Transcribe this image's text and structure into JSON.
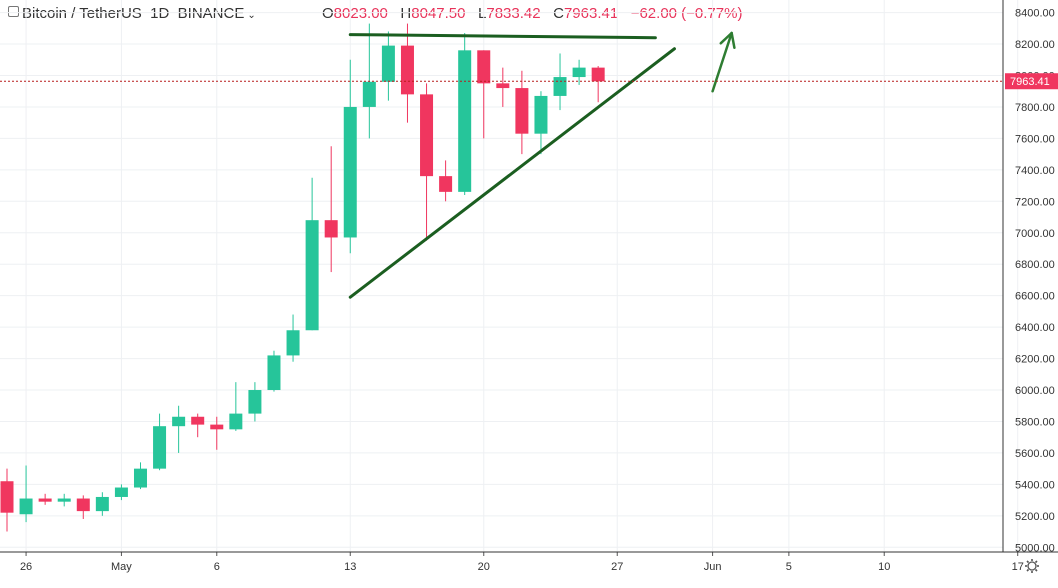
{
  "header": {
    "symbol": "Bitcoin / TetherUS",
    "interval": "1D",
    "exchange": "BINANCE",
    "open_label": "O",
    "open": "8023.00",
    "high_label": "H",
    "high": "8047.50",
    "low_label": "L",
    "low": "7833.42",
    "close_label": "C",
    "close": "7963.41",
    "change": "−62.00 (−0.77%)"
  },
  "price_badge": "7963.41",
  "colors": {
    "up": "#26c59a",
    "down": "#f0365f",
    "trendline": "#1b5e20",
    "arrow": "#2e7d32",
    "last_price_line": "#b71c1c"
  },
  "icons": {
    "settings": "gear-icon",
    "symbol": "symbol-icon",
    "dropdown": "chevron-down-icon"
  },
  "chart_data": {
    "type": "candlestick",
    "x_axis": {
      "ticks": [
        "26",
        "May",
        "6",
        "13",
        "20",
        "27",
        "Jun",
        "5",
        "10",
        "17"
      ]
    },
    "y_axis": {
      "ticks": [
        "5000.00",
        "5200.00",
        "5400.00",
        "5600.00",
        "5800.00",
        "6000.00",
        "6200.00",
        "6400.00",
        "6600.00",
        "6800.00",
        "7000.00",
        "7200.00",
        "7400.00",
        "7600.00",
        "7800.00",
        "8000.00",
        "8200.00",
        "8400.00"
      ],
      "range": [
        4970,
        8480
      ]
    },
    "candles": [
      {
        "date": "Apr 25",
        "o": 5420,
        "h": 5500,
        "l": 5100,
        "c": 5220
      },
      {
        "date": "Apr 26",
        "o": 5210,
        "h": 5520,
        "l": 5160,
        "c": 5310
      },
      {
        "date": "Apr 27",
        "o": 5310,
        "h": 5340,
        "l": 5270,
        "c": 5290
      },
      {
        "date": "Apr 28",
        "o": 5290,
        "h": 5340,
        "l": 5260,
        "c": 5310
      },
      {
        "date": "Apr 29",
        "o": 5310,
        "h": 5330,
        "l": 5180,
        "c": 5230
      },
      {
        "date": "Apr 30",
        "o": 5230,
        "h": 5350,
        "l": 5200,
        "c": 5320
      },
      {
        "date": "May 1",
        "o": 5320,
        "h": 5400,
        "l": 5300,
        "c": 5380
      },
      {
        "date": "May 2",
        "o": 5380,
        "h": 5540,
        "l": 5370,
        "c": 5500
      },
      {
        "date": "May 3",
        "o": 5500,
        "h": 5850,
        "l": 5490,
        "c": 5770
      },
      {
        "date": "May 4",
        "o": 5770,
        "h": 5900,
        "l": 5600,
        "c": 5830
      },
      {
        "date": "May 5",
        "o": 5830,
        "h": 5850,
        "l": 5700,
        "c": 5780
      },
      {
        "date": "May 6",
        "o": 5780,
        "h": 5830,
        "l": 5620,
        "c": 5750
      },
      {
        "date": "May 7",
        "o": 5750,
        "h": 6050,
        "l": 5740,
        "c": 5850
      },
      {
        "date": "May 8",
        "o": 5850,
        "h": 6050,
        "l": 5800,
        "c": 6000
      },
      {
        "date": "May 9",
        "o": 6000,
        "h": 6250,
        "l": 5990,
        "c": 6220
      },
      {
        "date": "May 10",
        "o": 6220,
        "h": 6480,
        "l": 6180,
        "c": 6380
      },
      {
        "date": "May 11",
        "o": 6380,
        "h": 7350,
        "l": 6380,
        "c": 7080
      },
      {
        "date": "May 12",
        "o": 7080,
        "h": 7550,
        "l": 6750,
        "c": 6970
      },
      {
        "date": "May 13",
        "o": 6970,
        "h": 8100,
        "l": 6870,
        "c": 7800
      },
      {
        "date": "May 14",
        "o": 7800,
        "h": 8330,
        "l": 7600,
        "c": 7960
      },
      {
        "date": "May 15",
        "o": 7960,
        "h": 8280,
        "l": 7840,
        "c": 8190
      },
      {
        "date": "May 16",
        "o": 8190,
        "h": 8330,
        "l": 7700,
        "c": 7880
      },
      {
        "date": "May 17",
        "o": 7880,
        "h": 7950,
        "l": 6950,
        "c": 7360
      },
      {
        "date": "May 18",
        "o": 7360,
        "h": 7460,
        "l": 7200,
        "c": 7260
      },
      {
        "date": "May 19",
        "o": 7260,
        "h": 8270,
        "l": 7240,
        "c": 8160
      },
      {
        "date": "May 20",
        "o": 8160,
        "h": 8160,
        "l": 7600,
        "c": 7950
      },
      {
        "date": "May 21",
        "o": 7950,
        "h": 8050,
        "l": 7800,
        "c": 7920
      },
      {
        "date": "May 22",
        "o": 7920,
        "h": 8030,
        "l": 7500,
        "c": 7630
      },
      {
        "date": "May 23",
        "o": 7630,
        "h": 7900,
        "l": 7500,
        "c": 7870
      },
      {
        "date": "May 24",
        "o": 7870,
        "h": 8140,
        "l": 7780,
        "c": 7990
      },
      {
        "date": "May 25",
        "o": 7990,
        "h": 8100,
        "l": 7940,
        "c": 8050
      },
      {
        "date": "May 26",
        "o": 8050,
        "h": 8060,
        "l": 7830,
        "c": 7963
      }
    ],
    "last_price": 7963.41,
    "annotations": [
      {
        "type": "trendline",
        "from": {
          "date": "May 13",
          "price": 8260
        },
        "to": {
          "date": "May 29",
          "price": 8240
        }
      },
      {
        "type": "trendline",
        "from": {
          "date": "May 13",
          "price": 6590
        },
        "to": {
          "date": "May 30",
          "price": 8170
        }
      },
      {
        "type": "arrow",
        "from": {
          "date": "Jun 1",
          "price": 7900
        },
        "to": {
          "date": "Jun 2",
          "price": 8270
        }
      }
    ],
    "grid": true
  }
}
